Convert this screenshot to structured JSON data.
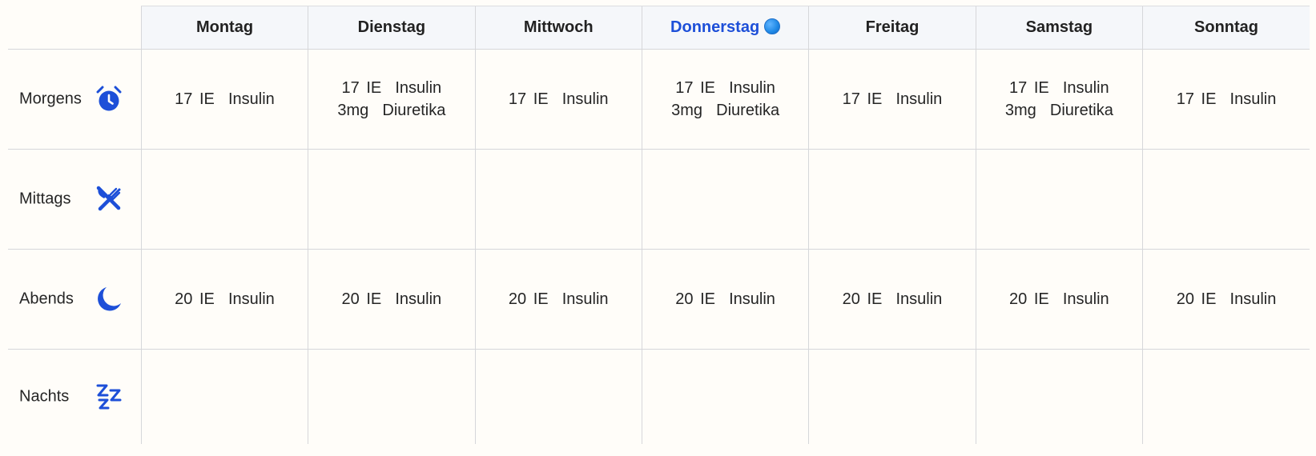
{
  "days": [
    {
      "label": "Montag",
      "today": false
    },
    {
      "label": "Dienstag",
      "today": false
    },
    {
      "label": "Mittwoch",
      "today": false
    },
    {
      "label": "Donnerstag",
      "today": true
    },
    {
      "label": "Freitag",
      "today": false
    },
    {
      "label": "Samstag",
      "today": false
    },
    {
      "label": "Sonntag",
      "today": false
    }
  ],
  "rows": [
    {
      "label": "Morgens",
      "icon": "alarm-clock-icon",
      "cells": [
        [
          "17 IE  Insulin"
        ],
        [
          "17 IE  Insulin",
          "3mg  Diuretika"
        ],
        [
          "17 IE  Insulin"
        ],
        [
          "17 IE  Insulin",
          "3mg  Diuretika"
        ],
        [
          "17 IE  Insulin"
        ],
        [
          "17 IE  Insulin",
          "3mg  Diuretika"
        ],
        [
          "17 IE  Insulin"
        ]
      ]
    },
    {
      "label": "Mittags",
      "icon": "fork-knife-icon",
      "cells": [
        [],
        [],
        [],
        [],
        [],
        [],
        []
      ]
    },
    {
      "label": "Abends",
      "icon": "moon-icon",
      "cells": [
        [
          "20 IE  Insulin"
        ],
        [
          "20 IE  Insulin"
        ],
        [
          "20 IE  Insulin"
        ],
        [
          "20 IE  Insulin"
        ],
        [
          "20 IE  Insulin"
        ],
        [
          "20 IE  Insulin"
        ],
        [
          "20 IE  Insulin"
        ]
      ]
    },
    {
      "label": "Nachts",
      "icon": "sleep-zzz-icon",
      "cells": [
        [],
        [],
        [],
        [],
        [],
        [],
        []
      ]
    }
  ],
  "colors": {
    "accent": "#1d4fd8",
    "today_dot": "#1e88e5",
    "header_bg": "#f5f7fa",
    "page_bg": "#fffdf9",
    "grid": "#d6d7da"
  }
}
